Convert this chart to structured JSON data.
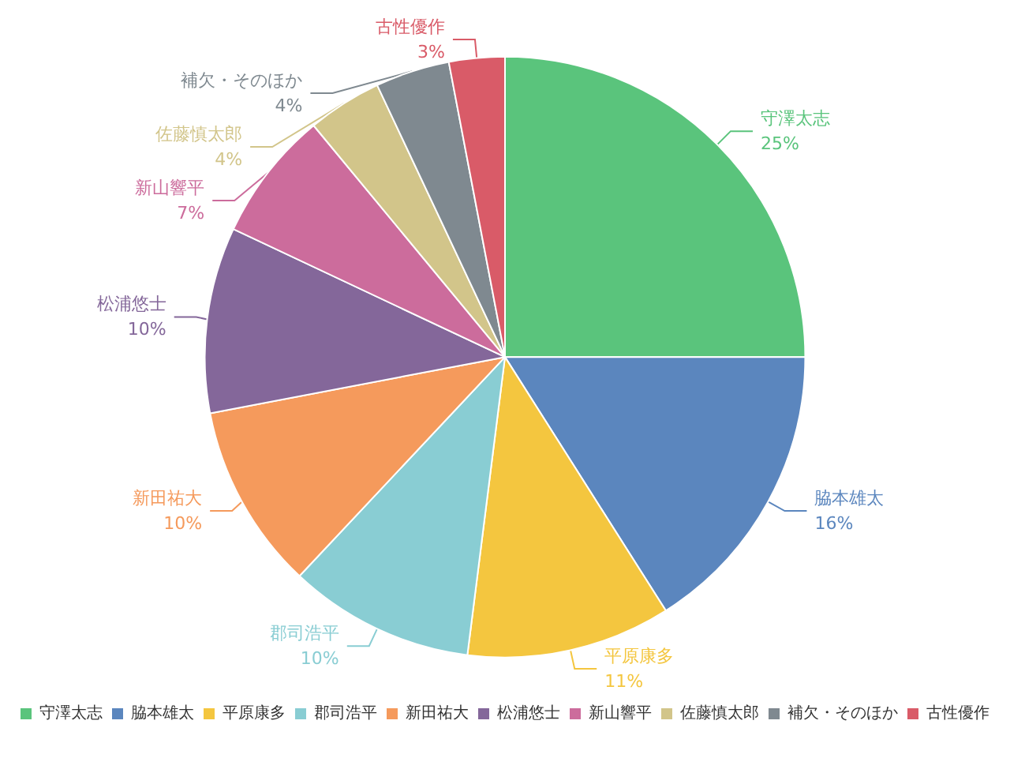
{
  "chart_data": {
    "type": "pie",
    "categories": [
      "守澤太志",
      "脇本雄太",
      "平原康多",
      "郡司浩平",
      "新田祐大",
      "松浦悠士",
      "新山響平",
      "佐藤慎太郎",
      "補欠・そのほか",
      "古性優作"
    ],
    "values": [
      25,
      16,
      11,
      10,
      10,
      10,
      7,
      4,
      4,
      3
    ],
    "colors": [
      "#5ac47c",
      "#5b86be",
      "#f4c63f",
      "#89cdd3",
      "#f59a5c",
      "#84679a",
      "#cc6c9c",
      "#d2c58a",
      "#7f8990",
      "#d95b68"
    ],
    "value_labels": [
      "25%",
      "16%",
      "11%",
      "10%",
      "10%",
      "10%",
      "7%",
      "4%",
      "4%",
      "3%"
    ],
    "legend": "bottom"
  }
}
